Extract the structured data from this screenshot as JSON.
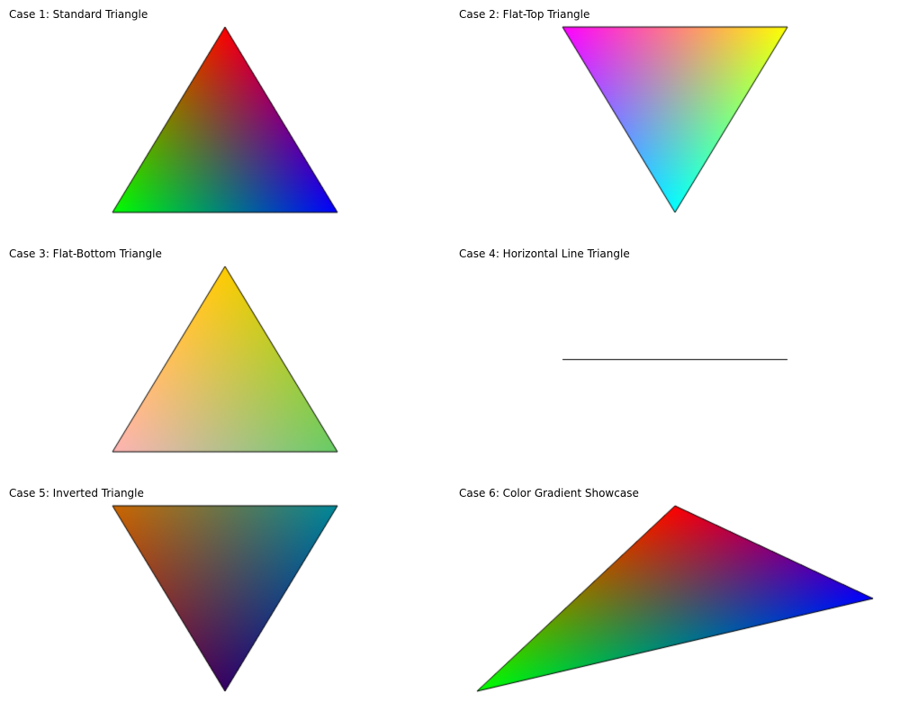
{
  "cases": [
    {
      "title": "Case 1: Standard Triangle",
      "vertex_colors": [
        "#ff0000",
        "#00ff00",
        "#0000ff"
      ],
      "degenerate": false
    },
    {
      "title": "Case 2: Flat-Top Triangle",
      "vertex_colors": [
        "#ff00ff",
        "#ffff00",
        "#00ffff"
      ],
      "degenerate": false
    },
    {
      "title": "Case 3: Flat-Bottom Triangle",
      "vertex_colors": [
        "#ffcc00",
        "#ffb4b4",
        "#66cc66"
      ],
      "degenerate": false
    },
    {
      "title": "Case 4: Horizontal Line Triangle",
      "vertex_colors": [
        "#000000",
        "#000000",
        "#000000"
      ],
      "degenerate": true
    },
    {
      "title": "Case 5: Inverted Triangle",
      "vertex_colors": [
        "#cc6600",
        "#008899",
        "#330066"
      ],
      "degenerate": false
    },
    {
      "title": "Case 6: Color Gradient Showcase",
      "vertex_colors": [
        "#ff0000",
        "#0000ff",
        "#00ff00"
      ],
      "degenerate": false
    }
  ]
}
